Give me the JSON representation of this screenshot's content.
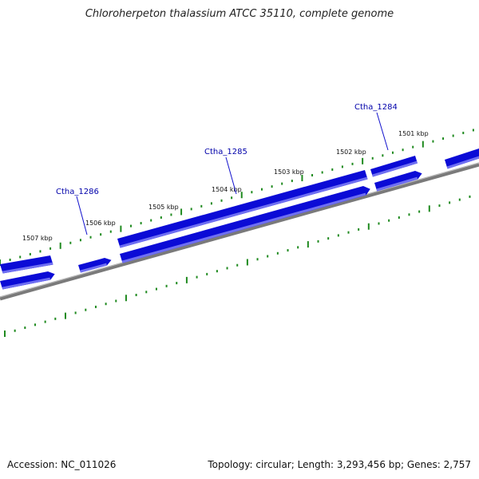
{
  "title": "Chloroherpeton thalassium ATCC 35110, complete genome",
  "accession_text": "Accession: NC_011026",
  "summary_text": "Topology: circular; Length: 3,293,456 bp; Genes: 2,757",
  "colors": {
    "gene_dark": "#0b0bd6",
    "gene_light": "#6f6ff2",
    "backbone": "#7a7a7a",
    "ticks": "#1f8a1f",
    "label_line": "#1010cc",
    "label_text": "#0000aa"
  },
  "scale_labels": [
    "1507 kbp",
    "1506 kbp",
    "1505 kbp",
    "1504 kbp",
    "1503 kbp",
    "1502 kbp",
    "1501 kbp"
  ],
  "gene_labels": [
    "Ctha_1286",
    "Ctha_1285",
    "Ctha_1284"
  ]
}
